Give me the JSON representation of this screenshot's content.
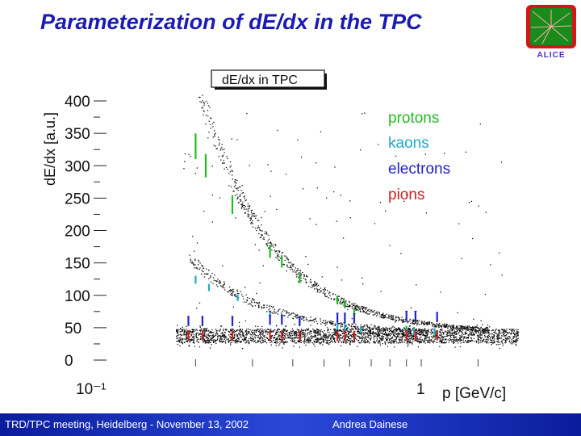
{
  "slide": {
    "title": "Parameterization of dE/dx in the TPC",
    "logo_text": "ALICE"
  },
  "footer": {
    "left": "TRD/TPC meeting, Heidelberg - November 13, 2002",
    "center": "Andrea Dainese"
  },
  "colors": {
    "title": "#1a1ab4",
    "footer_bg": "#1a34c8",
    "protons": "#22bb22",
    "kaons": "#22aacc",
    "electrons": "#2222cc",
    "pions": "#cc2222"
  },
  "chart_data": {
    "type": "scatter",
    "title": "dE/dx in TPC",
    "ylabel": "dE/dx [a.u.]",
    "xlabel": "p [GeV/c]",
    "x_scale": "log",
    "xlim": [
      0.1,
      1.8
    ],
    "ylim": [
      0,
      400
    ],
    "x_tick_labels": [
      {
        "value": 0.1,
        "label": "10⁻¹"
      },
      {
        "value": 1,
        "label": "1"
      }
    ],
    "y_tick_labels": [
      "400",
      "350",
      "300",
      "250",
      "200",
      "150",
      "100",
      "50",
      "0"
    ],
    "y_ticks": [
      400,
      350,
      300,
      250,
      200,
      150,
      100,
      50,
      0
    ],
    "grid": false,
    "legend_position": "top-right",
    "series": [
      {
        "name": "protons",
        "color": "#22bb22",
        "points": [
          {
            "x": 0.2,
            "y": 330
          },
          {
            "x": 0.215,
            "y": 300
          },
          {
            "x": 0.26,
            "y": 240
          },
          {
            "x": 0.34,
            "y": 168
          },
          {
            "x": 0.37,
            "y": 152
          },
          {
            "x": 0.42,
            "y": 126
          },
          {
            "x": 0.55,
            "y": 92
          },
          {
            "x": 0.58,
            "y": 86
          },
          {
            "x": 0.62,
            "y": 75
          },
          {
            "x": 0.9,
            "y": 47
          },
          {
            "x": 0.95,
            "y": 45
          },
          {
            "x": 1.1,
            "y": 43
          }
        ]
      },
      {
        "name": "kaons",
        "color": "#22aacc",
        "points": [
          {
            "x": 0.2,
            "y": 124
          },
          {
            "x": 0.22,
            "y": 112
          },
          {
            "x": 0.27,
            "y": 96
          },
          {
            "x": 0.34,
            "y": 70
          },
          {
            "x": 0.37,
            "y": 66
          },
          {
            "x": 0.42,
            "y": 61
          },
          {
            "x": 0.55,
            "y": 52
          },
          {
            "x": 0.58,
            "y": 50
          },
          {
            "x": 0.65,
            "y": 47
          },
          {
            "x": 0.9,
            "y": 45
          },
          {
            "x": 0.95,
            "y": 44
          },
          {
            "x": 1.1,
            "y": 44
          }
        ]
      },
      {
        "name": "electrons",
        "color": "#2222cc",
        "points": [
          {
            "x": 0.19,
            "y": 60
          },
          {
            "x": 0.21,
            "y": 60
          },
          {
            "x": 0.26,
            "y": 60
          },
          {
            "x": 0.34,
            "y": 62
          },
          {
            "x": 0.37,
            "y": 62
          },
          {
            "x": 0.42,
            "y": 60
          },
          {
            "x": 0.55,
            "y": 65
          },
          {
            "x": 0.58,
            "y": 65
          },
          {
            "x": 0.62,
            "y": 64
          },
          {
            "x": 0.9,
            "y": 68
          },
          {
            "x": 0.96,
            "y": 68
          },
          {
            "x": 1.12,
            "y": 66
          }
        ]
      },
      {
        "name": "pions",
        "color": "#cc2222",
        "points": [
          {
            "x": 0.19,
            "y": 38
          },
          {
            "x": 0.21,
            "y": 38
          },
          {
            "x": 0.26,
            "y": 37
          },
          {
            "x": 0.34,
            "y": 37
          },
          {
            "x": 0.37,
            "y": 37
          },
          {
            "x": 0.42,
            "y": 37
          },
          {
            "x": 0.55,
            "y": 37
          },
          {
            "x": 0.58,
            "y": 37
          },
          {
            "x": 0.62,
            "y": 37
          },
          {
            "x": 0.9,
            "y": 38
          },
          {
            "x": 0.96,
            "y": 38
          },
          {
            "x": 1.12,
            "y": 38
          }
        ]
      }
    ]
  }
}
